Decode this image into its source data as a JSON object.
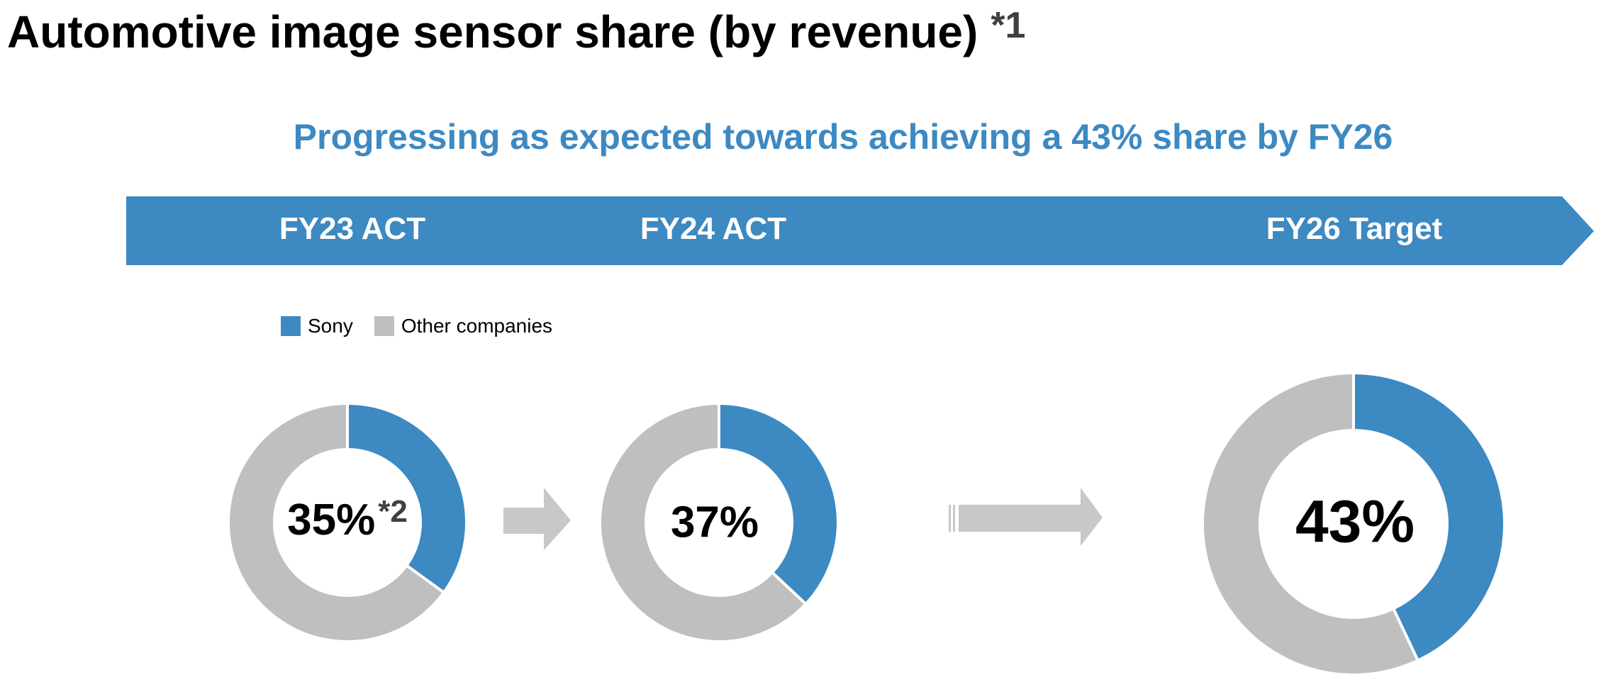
{
  "title": "Automotive image sensor share (by revenue)",
  "title_note": "*1",
  "subtitle": "Progressing as expected towards achieving a 43% share by FY26",
  "colors": {
    "sony": "#3d89c2",
    "other": "#bfbfbf",
    "banner": "#3d89c2",
    "arrow": "#c8c8c8"
  },
  "periods": [
    "FY23 ACT",
    "FY24 ACT",
    "FY26 Target"
  ],
  "legend": [
    {
      "label": "Sony",
      "color": "#3d89c2"
    },
    {
      "label": "Other companies",
      "color": "#bfbfbf"
    }
  ],
  "chart_data": {
    "type": "pie",
    "charts": [
      {
        "period": "FY23 ACT",
        "label": "35%",
        "note": "*2",
        "values": {
          "Sony": 35,
          "Other companies": 65
        }
      },
      {
        "period": "FY24 ACT",
        "label": "37%",
        "note": "",
        "values": {
          "Sony": 37,
          "Other companies": 63
        }
      },
      {
        "period": "FY26 Target",
        "label": "43%",
        "note": "",
        "values": {
          "Sony": 43,
          "Other companies": 57
        }
      }
    ]
  }
}
